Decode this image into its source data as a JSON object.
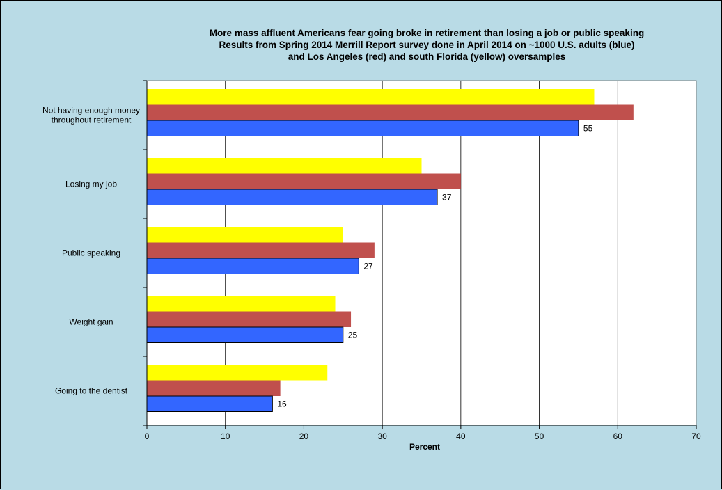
{
  "chart_data": {
    "type": "bar",
    "orientation": "horizontal",
    "title": [
      "More mass affluent Americans fear going broke in retirement than losing a job or public speaking",
      "Results from Spring 2014 Merrill Report survey done in April 2014 on ~1000 U.S. adults (blue)",
      "and Los Angeles (red) and south Florida (yellow) oversamples"
    ],
    "xlabel": "Percent",
    "ylabel": "",
    "xlim": [
      0,
      70
    ],
    "xticks": [
      0,
      10,
      20,
      30,
      40,
      50,
      60,
      70
    ],
    "grid": true,
    "legend": "none",
    "categories": [
      [
        "Not having enough money",
        "throughout retirement"
      ],
      [
        "Losing my job"
      ],
      [
        "Public speaking"
      ],
      [
        "Weight gain"
      ],
      [
        "Going to the dentist"
      ]
    ],
    "series": [
      {
        "key": "florida",
        "color": "#ffff00",
        "values": [
          57,
          35,
          25,
          24,
          23
        ],
        "show_labels": false
      },
      {
        "key": "la",
        "color": "#c0504d",
        "values": [
          62,
          40,
          29,
          26,
          17
        ],
        "show_labels": false
      },
      {
        "key": "us",
        "color": "#3366ff",
        "values": [
          55,
          37,
          27,
          25,
          16
        ],
        "show_labels": true
      }
    ]
  }
}
